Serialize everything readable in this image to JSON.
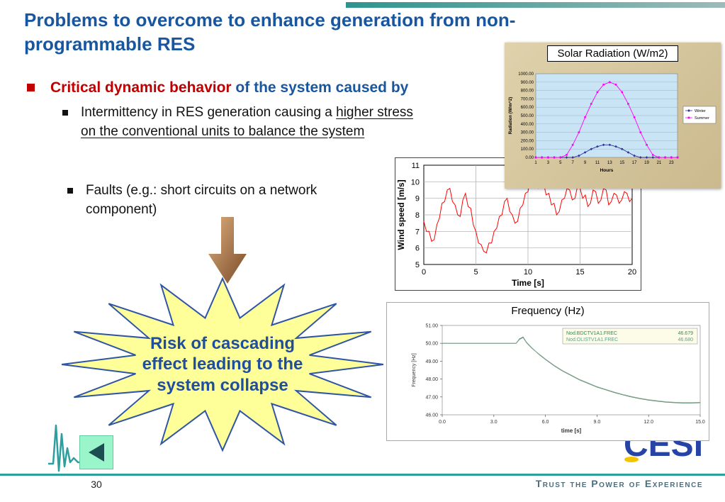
{
  "slide": {
    "title": "Problems to overcome to enhance generation from non-programmable RES",
    "page_number": "30"
  },
  "bullets": {
    "heading_red": "Critical dynamic behavior",
    "heading_blue": " of the system caused by",
    "item1_plain": "Intermittency in RES generation causing a ",
    "item1_underlined": "higher stress on the conventional units to balance the system",
    "item2": "Faults (e.g.: short circuits on a network component)"
  },
  "starburst": {
    "text": "Risk of cascading effect leading to the system collapse"
  },
  "footer": {
    "logo": "CESI",
    "tagline": "Trust the Power of Experience"
  },
  "colors": {
    "title_blue": "#1857A0",
    "bullet_red": "#C00000",
    "accent_teal": "#2E9E9E",
    "starburst_fill": "#FFFF99",
    "starburst_border": "#2F55A4",
    "starburst_text": "#1F4E9C",
    "back_button_fill": "#9BF5CB",
    "back_button_arrow": "#1C4F4F",
    "cesi_blue": "#2744A4",
    "cesi_yellow": "#F2C500"
  },
  "icons": {
    "back_button": "left-triangle",
    "waveform_logo": "seismic-waveform",
    "down_arrow": "block-arrow-down"
  },
  "chart_data": [
    {
      "id": "solar-radiation",
      "type": "line",
      "title": "Solar Radiation (W/m2)",
      "xlabel": "Hours",
      "ylabel": "Radiation (W/m^2)",
      "x": [
        1,
        2,
        3,
        4,
        5,
        6,
        7,
        8,
        9,
        10,
        11,
        12,
        13,
        14,
        15,
        16,
        17,
        18,
        19,
        20,
        21,
        22,
        23,
        24
      ],
      "xticks": [
        1,
        3,
        5,
        7,
        9,
        11,
        13,
        15,
        17,
        19,
        21,
        23
      ],
      "xlim": [
        1,
        24
      ],
      "ylim": [
        0,
        1000
      ],
      "yticks": [
        0,
        100,
        200,
        300,
        400,
        500,
        600,
        700,
        800,
        900,
        1000
      ],
      "ytick_decimals": 2,
      "plot_bg": "#C9E4F5",
      "legend_position": "right",
      "series": [
        {
          "name": "Winter",
          "color": "#333399",
          "marker": "diamond",
          "values": [
            0,
            0,
            0,
            0,
            0,
            0,
            0,
            20,
            60,
            100,
            130,
            150,
            150,
            130,
            100,
            60,
            20,
            0,
            0,
            0,
            0,
            0,
            0,
            0
          ]
        },
        {
          "name": "Summer",
          "color": "#FF00FF",
          "marker": "square",
          "values": [
            0,
            0,
            0,
            0,
            0,
            30,
            150,
            300,
            480,
            640,
            780,
            870,
            900,
            870,
            780,
            640,
            480,
            300,
            150,
            30,
            0,
            0,
            0,
            0
          ]
        }
      ]
    },
    {
      "id": "wind-speed",
      "type": "line",
      "xlabel": "Time [s]",
      "ylabel": "Wind speed [m/s]",
      "xlim": [
        0,
        20
      ],
      "ylim": [
        5,
        11
      ],
      "xticks": [
        0,
        5,
        10,
        15,
        20
      ],
      "yticks": [
        5,
        6,
        7,
        8,
        9,
        10,
        11
      ],
      "grid": true,
      "color": "#FF0000",
      "x_start": 0,
      "x_step": 0.25,
      "values": [
        7.6,
        7.0,
        7.0,
        6.4,
        6.5,
        7.4,
        7.8,
        8.7,
        8.8,
        9.5,
        9.6,
        8.8,
        8.6,
        8.0,
        7.9,
        8.9,
        9.3,
        8.5,
        8.4,
        7.4,
        7.0,
        6.3,
        6.2,
        5.8,
        5.7,
        6.3,
        6.3,
        7.0,
        7.2,
        7.9,
        8.0,
        8.8,
        9.0,
        8.2,
        8.0,
        7.5,
        7.6,
        8.4,
        8.6,
        9.3,
        9.4,
        10.2,
        10.4,
        9.7,
        9.6,
        10.0,
        9.9,
        9.2,
        9.3,
        8.6,
        8.7,
        8.0,
        8.2,
        8.9,
        9.0,
        9.6,
        9.5,
        8.9,
        9.0,
        9.7,
        9.6,
        9.0,
        9.2,
        8.5,
        8.7,
        9.5,
        9.4,
        8.7,
        8.9,
        9.6,
        9.5,
        8.6,
        8.8,
        9.3,
        9.2,
        8.7,
        8.9,
        9.4,
        9.3,
        8.8,
        9.0
      ]
    },
    {
      "id": "frequency",
      "type": "line",
      "title": "Frequency (Hz)",
      "xlabel": "time [s]",
      "ylabel": "Frequency [Hz]",
      "xlim": [
        0,
        15
      ],
      "ylim": [
        46,
        51
      ],
      "xticks": [
        "0.0",
        "3.0",
        "6.0",
        "9.0",
        "12.0",
        "15.0"
      ],
      "yticks": [
        "51.00",
        "50.00",
        "49.00",
        "48.00",
        "47.00",
        "46.00"
      ],
      "legend": [
        {
          "label": "Nod.BDCTV1A1.FREC",
          "value": "46.679",
          "color": "#2E8B57"
        },
        {
          "label": "Nod.OLISTV1A1.FREC",
          "value": "46.680",
          "color": "#63A08F"
        }
      ],
      "x": [
        0,
        1,
        2,
        3,
        4,
        4.3,
        4.5,
        4.7,
        4.9,
        5.2,
        5.6,
        6,
        6.5,
        7,
        7.5,
        8,
        8.5,
        9,
        9.5,
        10,
        10.5,
        11,
        11.5,
        12,
        12.5,
        13,
        13.5,
        14,
        14.5,
        15
      ],
      "series": [
        {
          "name": "Nod.BDCTV1A1.FREC",
          "color": "#3A7D44",
          "values": [
            50,
            50,
            50,
            50,
            50,
            50,
            50.25,
            50.35,
            50.05,
            49.75,
            49.4,
            49.1,
            48.75,
            48.45,
            48.2,
            47.95,
            47.75,
            47.55,
            47.4,
            47.25,
            47.12,
            47.0,
            46.9,
            46.82,
            46.76,
            46.71,
            46.68,
            46.66,
            46.66,
            46.68
          ]
        },
        {
          "name": "Nod.OLISTV1A1.FREC",
          "color": "#8FA79B",
          "values": [
            50,
            50,
            50,
            50,
            50,
            50,
            50.22,
            50.32,
            50.03,
            49.73,
            49.42,
            49.12,
            48.77,
            48.47,
            48.22,
            47.97,
            47.77,
            47.57,
            47.42,
            47.27,
            47.14,
            47.02,
            46.92,
            46.84,
            46.78,
            46.73,
            46.7,
            46.68,
            46.68,
            46.7
          ]
        }
      ]
    }
  ]
}
